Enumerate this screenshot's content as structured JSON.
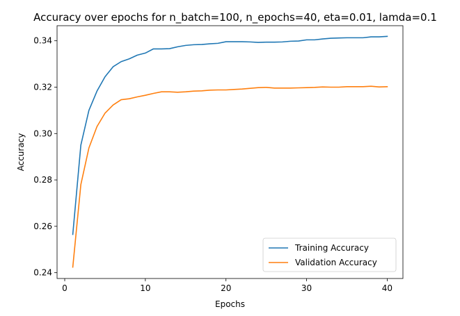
{
  "chart_data": {
    "type": "line",
    "title": "Accuracy over epochs for n_batch=100, n_epochs=40, eta=0.01, lamda=0.1",
    "xlabel": "Epochs",
    "ylabel": "Accuracy",
    "xlim": [
      -0.95,
      41.95
    ],
    "ylim": [
      0.2375,
      0.3465
    ],
    "xticks": [
      0,
      10,
      20,
      30,
      40
    ],
    "xtick_labels": [
      "0",
      "10",
      "20",
      "30",
      "40"
    ],
    "yticks": [
      0.24,
      0.26,
      0.28,
      0.3,
      0.32,
      0.34
    ],
    "ytick_labels": [
      "0.24",
      "0.26",
      "0.28",
      "0.30",
      "0.32",
      "0.34"
    ],
    "grid": false,
    "legend_position": "bottom-right",
    "x": [
      1,
      2,
      3,
      4,
      5,
      6,
      7,
      8,
      9,
      10,
      11,
      12,
      13,
      14,
      15,
      16,
      17,
      18,
      19,
      20,
      21,
      22,
      23,
      24,
      25,
      26,
      27,
      28,
      29,
      30,
      31,
      32,
      33,
      34,
      35,
      36,
      37,
      38,
      39,
      40
    ],
    "series": [
      {
        "name": "Training Accuracy",
        "color": "#1f77b4",
        "values": [
          0.2565,
          0.295,
          0.31,
          0.3183,
          0.3245,
          0.3288,
          0.331,
          0.3322,
          0.3338,
          0.3347,
          0.3365,
          0.3365,
          0.3366,
          0.3374,
          0.338,
          0.3383,
          0.3384,
          0.3387,
          0.3389,
          0.3396,
          0.3396,
          0.3396,
          0.3395,
          0.3393,
          0.3394,
          0.3394,
          0.3395,
          0.3398,
          0.3399,
          0.3404,
          0.3404,
          0.3408,
          0.3411,
          0.3412,
          0.3413,
          0.3413,
          0.3413,
          0.3417,
          0.3417,
          0.3419
        ]
      },
      {
        "name": "Validation Accuracy",
        "color": "#ff7f0e",
        "values": [
          0.2424,
          0.278,
          0.2938,
          0.303,
          0.3088,
          0.3123,
          0.3146,
          0.315,
          0.3158,
          0.3165,
          0.3173,
          0.318,
          0.318,
          0.3178,
          0.318,
          0.3183,
          0.3184,
          0.3187,
          0.3188,
          0.3188,
          0.319,
          0.3192,
          0.3195,
          0.3198,
          0.3199,
          0.3196,
          0.3196,
          0.3196,
          0.3197,
          0.3198,
          0.3199,
          0.3201,
          0.32,
          0.32,
          0.3202,
          0.3202,
          0.3202,
          0.3204,
          0.3201,
          0.3202
        ]
      }
    ]
  }
}
